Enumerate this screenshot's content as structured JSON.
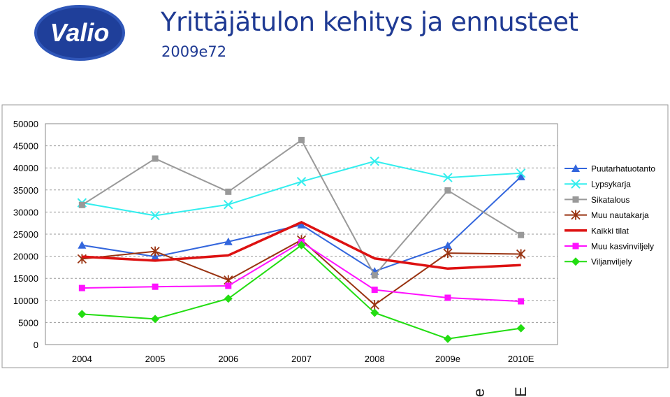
{
  "header": {
    "title": "Yrittäjätulon kehitys ja ennusteet",
    "subtitle": "2009e72",
    "logo_text": "Valio"
  },
  "colors": {
    "title": "#1f3a93",
    "logo_bg": "#1f3f9a",
    "logo_ring": "#2f56b8"
  },
  "chart_data": {
    "type": "line",
    "categories": [
      "2004",
      "2005",
      "2006",
      "2007",
      "2008",
      "2009e",
      "2010E"
    ],
    "ylim": [
      0,
      50000
    ],
    "yticks": [
      0,
      5000,
      10000,
      15000,
      20000,
      25000,
      30000,
      35000,
      40000,
      45000,
      50000
    ],
    "grid": true,
    "legend": "right",
    "series": [
      {
        "name": "Puutarhatuotanto",
        "color": "#3366dd",
        "marker": "triangle",
        "width": 2,
        "values": [
          22500,
          19900,
          23300,
          27100,
          16600,
          22400,
          38000
        ]
      },
      {
        "name": "Lypsykarja",
        "color": "#33eeee",
        "marker": "x",
        "width": 2,
        "values": [
          32100,
          29200,
          31700,
          36900,
          41500,
          37800,
          38800
        ]
      },
      {
        "name": "Sikatalous",
        "color": "#999999",
        "marker": "square",
        "width": 2,
        "values": [
          31600,
          42100,
          34600,
          46300,
          15700,
          34900,
          24800
        ]
      },
      {
        "name": "Muu nautakarja",
        "color": "#993311",
        "marker": "star",
        "width": 2,
        "values": [
          19400,
          21100,
          14600,
          23700,
          9000,
          20700,
          20500
        ]
      },
      {
        "name": "Kaikki tilat",
        "color": "#dd1111",
        "marker": "none",
        "width": 3.5,
        "values": [
          19900,
          19000,
          20200,
          27700,
          19500,
          17200,
          18000
        ]
      },
      {
        "name": "Muu kasvinviljely",
        "color": "#ff11ff",
        "marker": "square",
        "width": 2,
        "values": [
          12800,
          13100,
          13300,
          23200,
          12400,
          10600,
          9800
        ]
      },
      {
        "name": "Viljanviljely",
        "color": "#22dd11",
        "marker": "diamond",
        "width": 2,
        "values": [
          6900,
          5800,
          10400,
          22500,
          7200,
          1300,
          3700
        ]
      }
    ]
  },
  "stray_labels": [
    "e",
    "E"
  ]
}
